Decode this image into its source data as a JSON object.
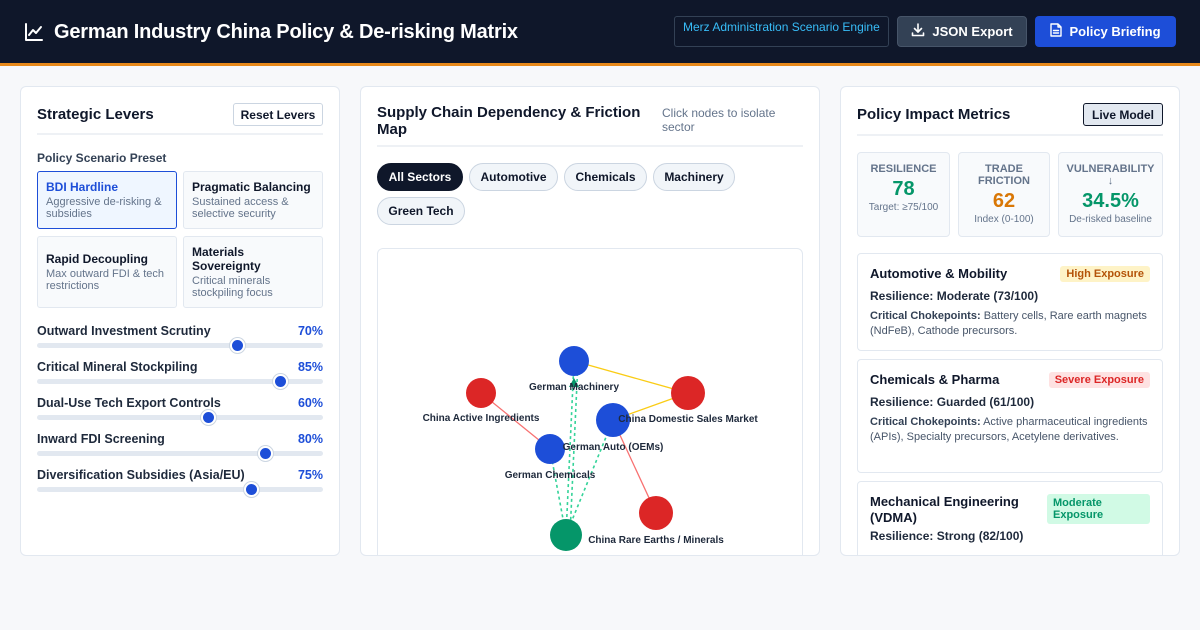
{
  "header": {
    "title": "German Industry China Policy & De-risking Matrix",
    "scenario_label": "Merz Administration Scenario Engine",
    "json_export_label": "JSON Export",
    "policy_briefing_label": "Policy Briefing"
  },
  "levers_panel": {
    "title": "Strategic Levers",
    "reset_label": "Reset Levers",
    "preset_heading": "Policy Scenario Preset",
    "presets": [
      {
        "name": "BDI Hardline",
        "desc": "Aggressive de-risking & subsidies",
        "active": true
      },
      {
        "name": "Pragmatic Balancing",
        "desc": "Sustained access & selective security",
        "active": false
      },
      {
        "name": "Rapid Decoupling",
        "desc": "Max outward FDI & tech restrictions",
        "active": false
      },
      {
        "name": "Materials Sovereignty",
        "desc": "Critical minerals stockpiling focus",
        "active": false
      }
    ],
    "levers": [
      {
        "name": "Outward Investment Scrutiny",
        "value_label": "70%",
        "value": 70
      },
      {
        "name": "Critical Mineral Stockpiling",
        "value_label": "85%",
        "value": 85
      },
      {
        "name": "Dual-Use Tech Export Controls",
        "value_label": "60%",
        "value": 60
      },
      {
        "name": "Inward FDI Screening",
        "value_label": "80%",
        "value": 80
      },
      {
        "name": "Diversification Subsidies (Asia/EU)",
        "value_label": "75%",
        "value": 75
      }
    ]
  },
  "map_panel": {
    "title": "Supply Chain Dependency & Friction Map",
    "hint": "Click nodes to isolate sector",
    "filters": [
      "All Sectors",
      "Automotive",
      "Chemicals",
      "Machinery",
      "Green Tech"
    ],
    "active_filter": "All Sectors",
    "nodes": [
      {
        "id": "de-machinery",
        "label": "German Machinery",
        "color": "#1d4ed8"
      },
      {
        "id": "cn-api",
        "label": "China Active Ingredients",
        "color": "#dc2626"
      },
      {
        "id": "cn-market",
        "label": "China Domestic Sales Market",
        "color": "#dc2626"
      },
      {
        "id": "de-auto",
        "label": "German Auto (OEMs)",
        "color": "#1d4ed8"
      },
      {
        "id": "de-chem",
        "label": "German Chemicals",
        "color": "#1d4ed8"
      },
      {
        "id": "cn-rare",
        "label": "China Rare Earths / Minerals",
        "color": "#dc2626"
      },
      {
        "id": "alt-supply",
        "label": "",
        "color": "#059669"
      }
    ],
    "edge_colors": {
      "dependency": "#f87171",
      "market": "#facc15",
      "diversification": "#34d399"
    }
  },
  "metrics_panel": {
    "title": "Policy Impact Metrics",
    "live_label": "Live Model",
    "metrics": [
      {
        "label": "RESILIENCE",
        "value": "78",
        "sub": "Target: ≥75/100",
        "color": "#059669"
      },
      {
        "label": "TRADE FRICTION",
        "value": "62",
        "sub": "Index (0-100)",
        "color": "#d97706"
      },
      {
        "label": "VULNERABILITY ↓",
        "value": "34.5%",
        "sub": "De-risked baseline",
        "color": "#059669"
      }
    ],
    "sectors": [
      {
        "name": "Automotive & Mobility",
        "badge": "High Exposure",
        "badge_color": "#b45309",
        "badge_bg": "#fef3c7",
        "resilience": "Resilience: Moderate (73/100)",
        "choke_label": "Critical Chokepoints:",
        "choke_text": "Battery cells, Rare earth magnets (NdFeB), Cathode precursors."
      },
      {
        "name": "Chemicals & Pharma",
        "badge": "Severe Exposure",
        "badge_color": "#dc2626",
        "badge_bg": "#fee2e2",
        "resilience": "Resilience: Guarded (61/100)",
        "choke_label": "Critical Chokepoints:",
        "choke_text": "Active pharmaceutical ingredients (APIs), Specialty precursors, Acetylene derivatives."
      },
      {
        "name": "Mechanical Engineering (VDMA)",
        "badge": "Moderate Exposure",
        "badge_color": "#059669",
        "badge_bg": "#d1fae5",
        "resilience": "Resilience: Strong (82/100)",
        "choke_label": "",
        "choke_text": ""
      }
    ]
  }
}
